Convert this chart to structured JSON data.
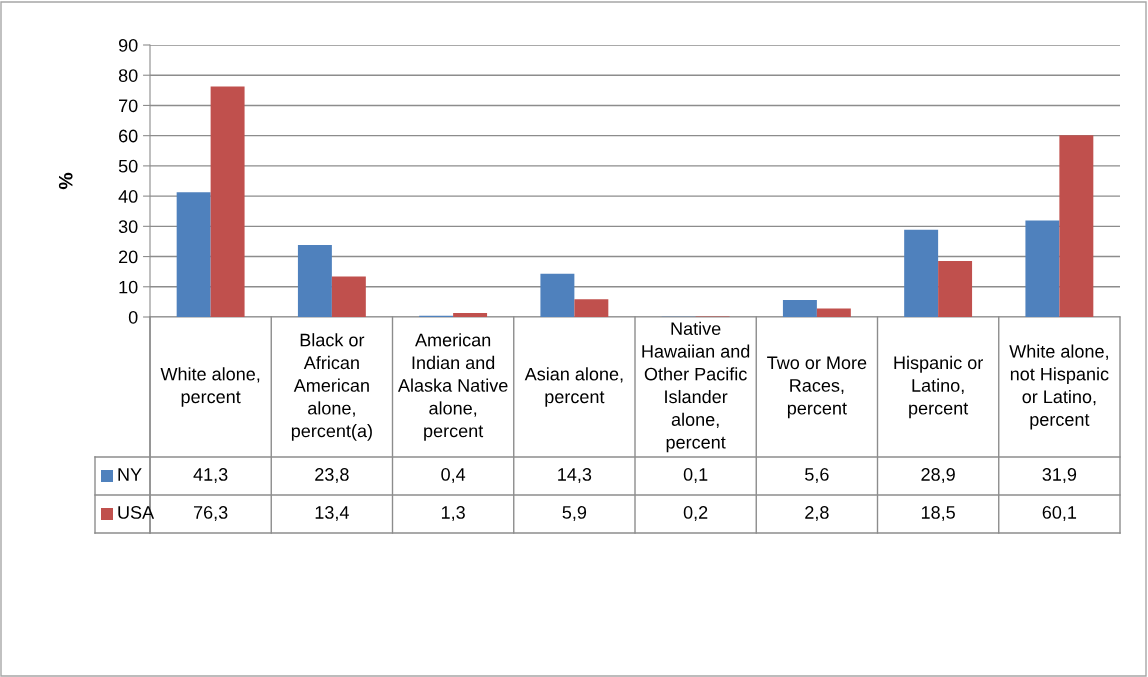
{
  "chart_data": {
    "type": "bar",
    "ylabel": "%",
    "categories": [
      "White alone, percent",
      "Black or African American alone, percent(a)",
      "American Indian and Alaska Native alone, percent",
      "Asian alone, percent",
      "Native Hawaiian and Other Pacific Islander alone, percent",
      "Two or More Races, percent",
      "Hispanic or Latino, percent",
      "White alone, not Hispanic or Latino, percent"
    ],
    "series": [
      {
        "name": "NY",
        "color": "#4f81bd",
        "values": [
          41.3,
          23.8,
          0.4,
          14.3,
          0.1,
          5.6,
          28.9,
          31.9
        ],
        "value_labels": [
          "41,3",
          "23,8",
          "0,4",
          "14,3",
          "0,1",
          "5,6",
          "28,9",
          "31,9"
        ]
      },
      {
        "name": "USA",
        "color": "#c0504d",
        "values": [
          76.3,
          13.4,
          1.3,
          5.9,
          0.2,
          2.8,
          18.5,
          60.1
        ],
        "value_labels": [
          "76,3",
          "13,4",
          "1,3",
          "5,9",
          "0,2",
          "2,8",
          "18,5",
          "60,1"
        ]
      }
    ],
    "ylim": [
      0,
      90
    ],
    "yticks": [
      0,
      10,
      20,
      30,
      40,
      50,
      60,
      70,
      80,
      90
    ],
    "grid": "y",
    "legend": "bottom left"
  }
}
